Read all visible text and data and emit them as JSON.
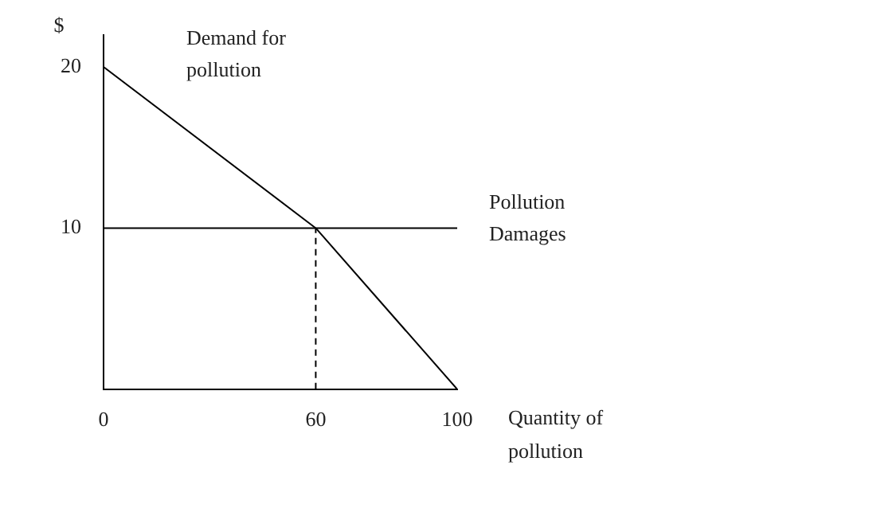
{
  "chart_data": {
    "type": "line",
    "xlabel": "Quantity of pollution",
    "ylabel": "$",
    "xlim": [
      0,
      100
    ],
    "ylim": [
      0,
      22
    ],
    "xticks": [
      0,
      60,
      100
    ],
    "yticks": [
      10,
      20
    ],
    "grid": false,
    "legend": false,
    "marker": "none",
    "series": [
      {
        "name": "Demand for pollution",
        "color": "#000000",
        "x": [
          0,
          60,
          100
        ],
        "values": [
          20,
          10,
          0
        ],
        "line_style": "solid"
      },
      {
        "name": "Pollution Damages",
        "color": "#000000",
        "x": [
          0,
          100
        ],
        "values": [
          10,
          10
        ],
        "line_style": "solid"
      },
      {
        "color": "#000000",
        "x": [
          60,
          60
        ],
        "values": [
          0,
          10
        ],
        "line_style": "dashed"
      }
    ]
  }
}
